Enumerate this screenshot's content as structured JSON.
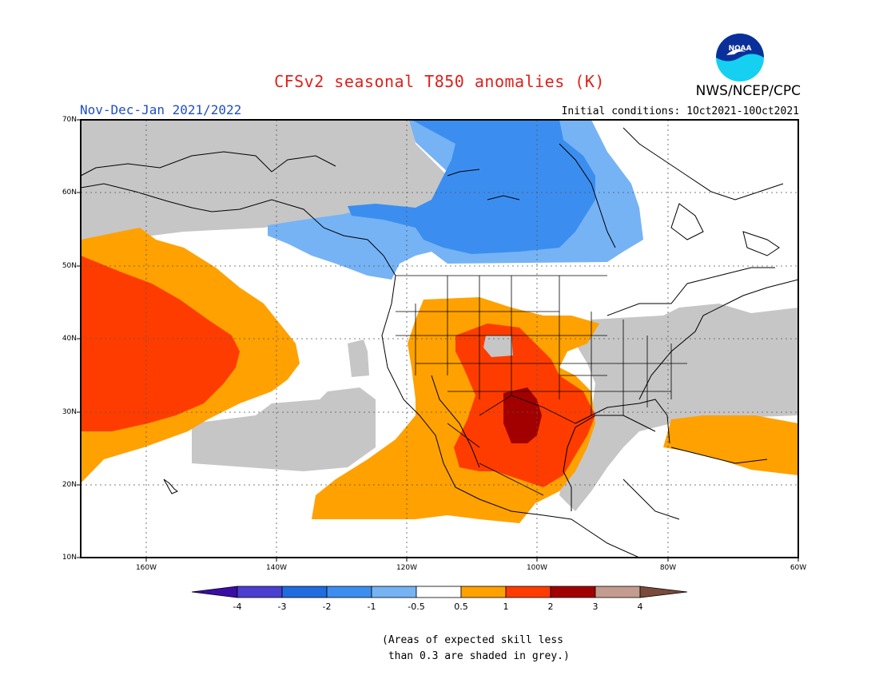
{
  "header": {
    "title": "CFSv2 seasonal T850 anomalies (K)",
    "agency": "NWS/NCEP/CPC",
    "logo_text": "NOAA",
    "season": "Nov-Dec-Jan 2021/2022",
    "initial_conditions": "Initial conditions: 1Oct2021-10Oct2021"
  },
  "map": {
    "lat_labels": [
      "70N",
      "60N",
      "50N",
      "40N",
      "30N",
      "20N",
      "10N"
    ],
    "lon_labels": [
      "160W",
      "140W",
      "120W",
      "100W",
      "80W",
      "60W"
    ],
    "lat_range": [
      10,
      70
    ],
    "lon_range": [
      -170,
      -60
    ],
    "colors": {
      "neg4": "#3a0ea6",
      "neg3": "#4a3fd0",
      "neg2": "#1f6ce0",
      "neg1": "#3b8eef",
      "neg05": "#75b3f5",
      "neutral": "#ffffff",
      "pos05": "#ffa100",
      "pos1": "#ff3c00",
      "pos2": "#a20000",
      "pos3": "#c49c8f",
      "pos4": "#7a4a3a",
      "low_skill": "#c6c6c6"
    }
  },
  "colorbar": {
    "labels": [
      "-4",
      "-3",
      "-2",
      "-1",
      "-0.5",
      "0.5",
      "1",
      "2",
      "3",
      "4"
    ]
  },
  "footnote": {
    "line1": "(Areas of expected skill less",
    "line2": " than 0.3 are shaded in grey.)"
  }
}
